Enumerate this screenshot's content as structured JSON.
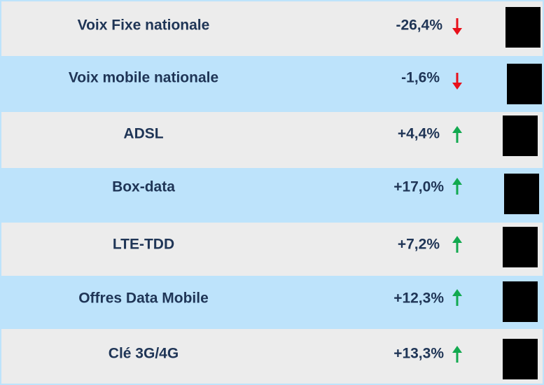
{
  "table": {
    "rows": [
      [
        "Voix Fixe nationale",
        "-26,4%"
      ],
      [
        "Voix mobile nationale",
        "-1,6%"
      ],
      [
        "ADSL",
        "+4,4%"
      ],
      [
        "Box-data",
        "+17,0%"
      ],
      [
        "LTE-TDD",
        "+7,2%"
      ],
      [
        "Offres Data Mobile",
        "+12,3%"
      ],
      [
        "Clé 3G/4G",
        "+13,3%"
      ]
    ]
  }
}
